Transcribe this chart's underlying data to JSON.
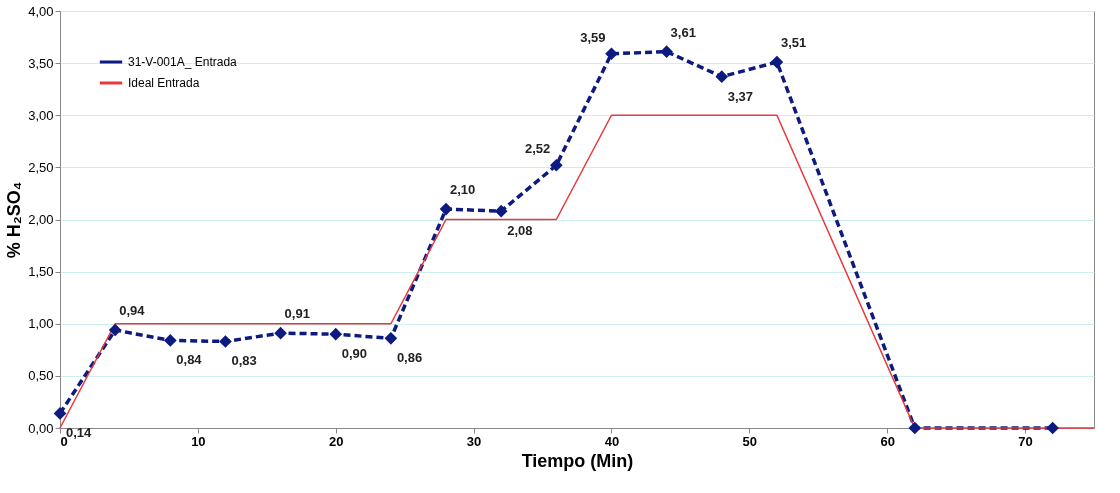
{
  "chart_data": {
    "type": "line",
    "xlabel": "Tiempo (Min)",
    "ylabel": "% H₂SO₄",
    "xlim": [
      0,
      75
    ],
    "xticks": [
      0,
      10,
      20,
      30,
      40,
      50,
      60,
      70
    ],
    "ylim": [
      0,
      4
    ],
    "yticks": [
      {
        "value": 0,
        "label": "0,00"
      },
      {
        "value": 0.5,
        "label": "0,50"
      },
      {
        "value": 1,
        "label": "1,00"
      },
      {
        "value": 1.5,
        "label": "1,50"
      },
      {
        "value": 2,
        "label": "2,00"
      },
      {
        "value": 2.5,
        "label": "2,50"
      },
      {
        "value": 3,
        "label": "3,00"
      },
      {
        "value": 3.5,
        "label": "3,50"
      },
      {
        "value": 4,
        "label": "4,00"
      }
    ],
    "grid": "y",
    "legend": "top left",
    "series": [
      {
        "name": "31-V-001A_ Entrada",
        "color": "#0d1a80",
        "marker": "diamond",
        "line_style": "dashed",
        "x": [
          0,
          4,
          8,
          12,
          16,
          20,
          24,
          28,
          32,
          36,
          40,
          44,
          48,
          52,
          62,
          72
        ],
        "values": [
          0.14,
          0.94,
          0.84,
          0.83,
          0.91,
          0.9,
          0.86,
          2.1,
          2.08,
          2.52,
          3.59,
          3.61,
          3.37,
          3.51,
          0,
          0
        ],
        "value_labels": [
          "0,14",
          "0,94",
          "0,84",
          "0,83",
          "0,91",
          "0,90",
          "0,86",
          "2,10",
          "2,08",
          "2,52",
          "3,59",
          "3,61",
          "3,37",
          "3,51",
          null,
          null
        ]
      },
      {
        "name": "Ideal Entrada",
        "color": "#e8383a",
        "marker": "none",
        "line_style": "solid",
        "x": [
          0,
          4,
          24,
          28,
          36,
          40,
          52,
          62,
          75
        ],
        "values": [
          0,
          1,
          1,
          2,
          2,
          3,
          3,
          0,
          0
        ]
      }
    ]
  }
}
